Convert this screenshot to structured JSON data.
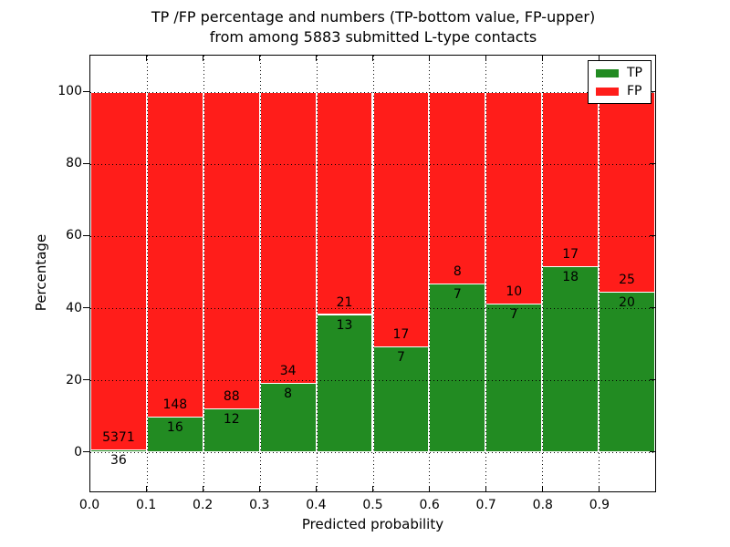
{
  "title": {
    "line1": "TP /FP percentage and numbers (TP-bottom value, FP-upper)",
    "line2": "from among 5883 submitted L-type contacts"
  },
  "chart_data": {
    "type": "bar",
    "subtype": "stacked-100-percent",
    "title": "TP /FP percentage and numbers (TP-bottom value, FP-upper)\nfrom among 5883 submitted L-type contacts",
    "xlabel": "Predicted probability",
    "ylabel": "Percentage",
    "total_submitted": 5883,
    "bin_width": 0.1,
    "bin_starts": [
      0.0,
      0.1,
      0.2,
      0.3,
      0.4,
      0.5,
      0.6,
      0.7,
      0.8,
      0.9
    ],
    "categories": [
      "0.0-0.1",
      "0.1-0.2",
      "0.2-0.3",
      "0.3-0.4",
      "0.4-0.5",
      "0.5-0.6",
      "0.6-0.7",
      "0.7-0.8",
      "0.8-0.9",
      "0.9-1.0"
    ],
    "series": [
      {
        "name": "TP",
        "color": "#228B22",
        "values": [
          36,
          16,
          12,
          8,
          13,
          7,
          7,
          7,
          18,
          20
        ]
      },
      {
        "name": "FP",
        "color": "#FF1D1A",
        "values": [
          5371,
          148,
          88,
          34,
          21,
          17,
          8,
          10,
          17,
          25
        ]
      }
    ],
    "bar_label_note": "FP count printed above the TP/FP boundary, TP count below it",
    "x_tick_labels": [
      "0.0",
      "0.1",
      "0.2",
      "0.3",
      "0.4",
      "0.5",
      "0.6",
      "0.7",
      "0.8",
      "0.9"
    ],
    "y_tick_values": [
      0,
      20,
      40,
      60,
      80,
      100
    ],
    "xlim": [
      0.0,
      1.0
    ],
    "ylim": [
      -11,
      110
    ],
    "grid": {
      "style": "dotted",
      "color": "#000000"
    },
    "legend": {
      "position": "upper-right",
      "entries": [
        {
          "label": "TP",
          "color": "#228B22"
        },
        {
          "label": "FP",
          "color": "#FF1D1A"
        }
      ]
    },
    "axis_color": "#000000",
    "background": "#FFFFFF"
  }
}
